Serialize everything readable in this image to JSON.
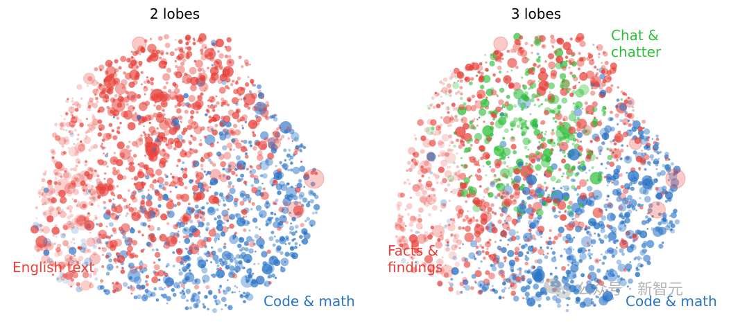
{
  "colors": {
    "english": "#e8413a",
    "code": "#2a74c7",
    "chat": "#2fbf3a",
    "title": "#000000",
    "watermark": "#9a9a9a"
  },
  "chart_data": [
    {
      "type": "scatter",
      "title": "2 lobes",
      "series": [
        {
          "name": "English text",
          "color_key": "english",
          "region": "left-and-upper"
        },
        {
          "name": "Code & math",
          "color_key": "code",
          "region": "lower-right"
        }
      ],
      "labels": [
        {
          "text": "English text",
          "color_key": "english",
          "placement": "left-bottom"
        },
        {
          "text": "Code & math",
          "color_key": "code",
          "placement": "right-bottom"
        }
      ],
      "grid": false,
      "axes": false
    },
    {
      "type": "scatter",
      "title": "3 lobes",
      "series": [
        {
          "name": "Facts & findings",
          "color_key": "english",
          "region": "left-and-lower-left"
        },
        {
          "name": "Chat & chatter",
          "color_key": "chat",
          "region": "upper-middle"
        },
        {
          "name": "Code & math",
          "color_key": "code",
          "region": "lower-right"
        }
      ],
      "labels": [
        {
          "text": "Chat &",
          "color_key": "chat",
          "placement": "top-right"
        },
        {
          "text": "chatter",
          "color_key": "chat",
          "placement": "top-right"
        },
        {
          "text": "Facts &",
          "color_key": "english",
          "placement": "left-bottom"
        },
        {
          "text": "findings",
          "color_key": "english",
          "placement": "left-bottom"
        },
        {
          "text": "Code & math",
          "color_key": "code",
          "placement": "right-bottom"
        }
      ],
      "grid": false,
      "axes": false
    }
  ],
  "watermark": {
    "text": "公众号 · 新智元",
    "icon": "wechat-icon"
  }
}
